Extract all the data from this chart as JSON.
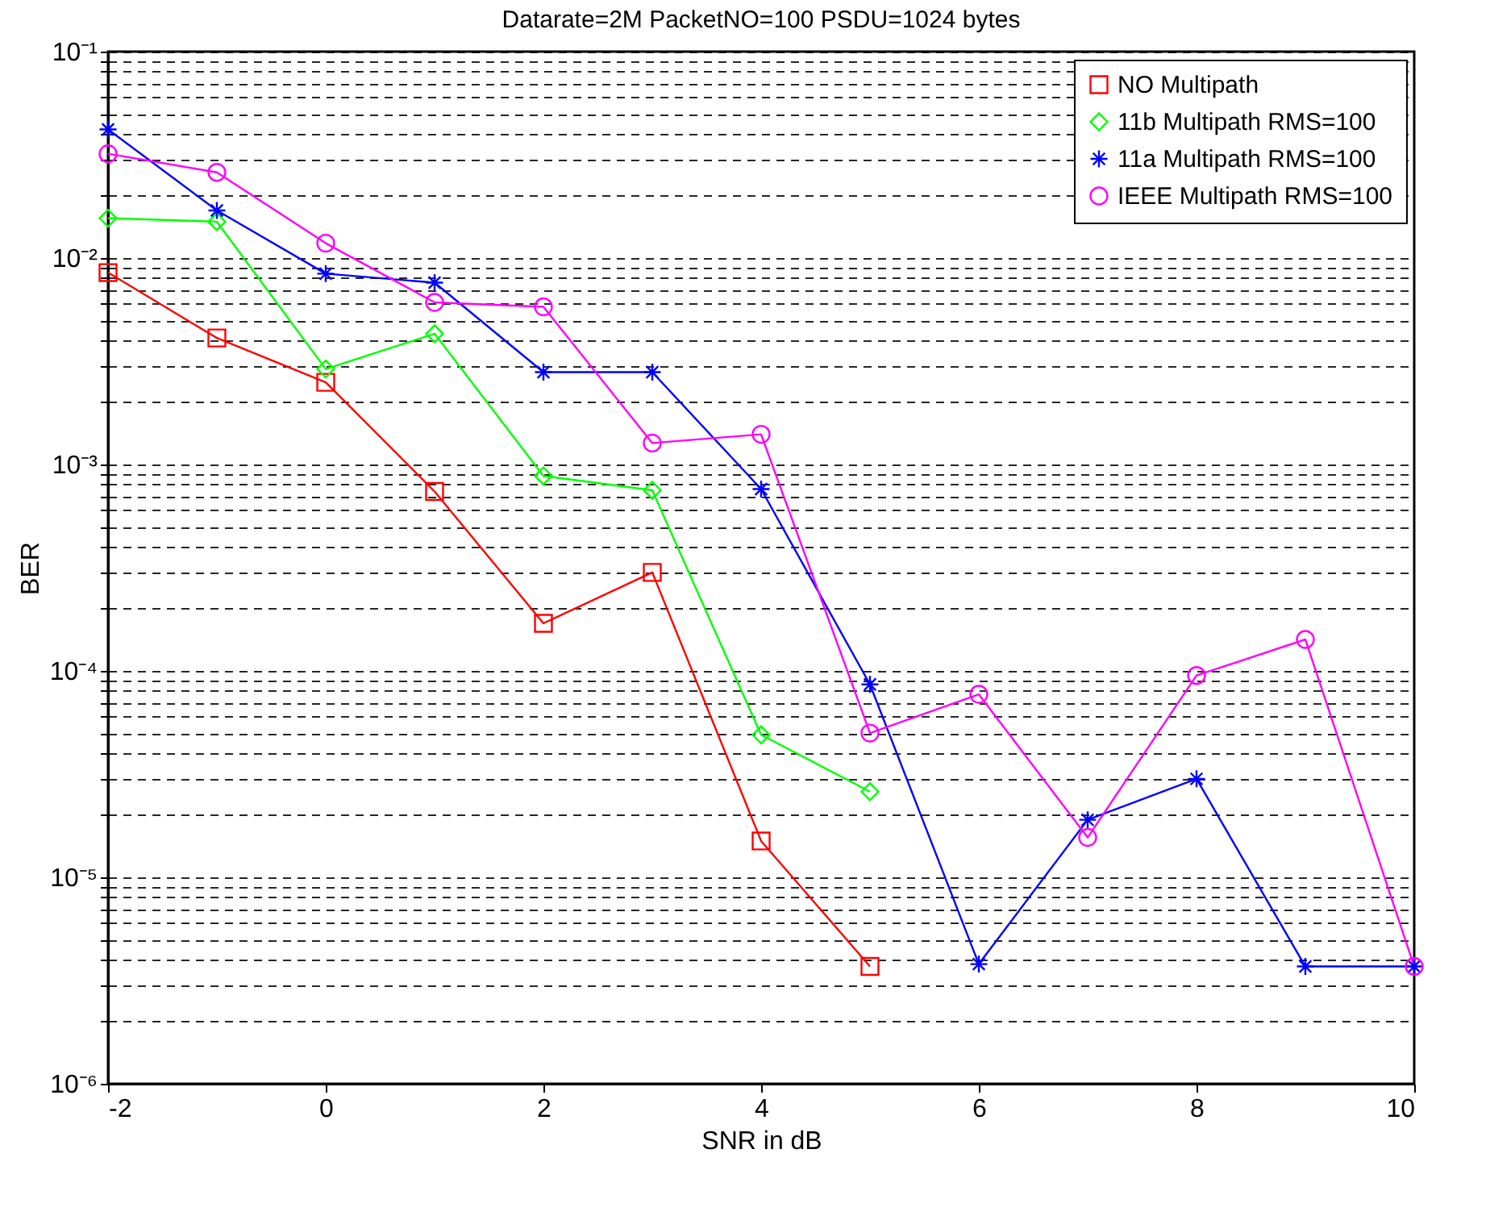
{
  "chart_data": {
    "type": "line",
    "title": "Datarate=2M PacketNO=100 PSDU=1024 bytes",
    "xlabel": "SNR in dB",
    "ylabel": "BER",
    "x": [
      -2,
      -1,
      0,
      1,
      2,
      3,
      4,
      5,
      6,
      7,
      8,
      9,
      10
    ],
    "series": [
      {
        "name": "NO Multipath",
        "color": "#ff0000",
        "marker": "square",
        "values": [
          0.0085,
          0.0041,
          0.0025,
          0.00074,
          0.00017,
          0.0003,
          1.5e-05,
          3.7e-06,
          null,
          null,
          null,
          null,
          null
        ]
      },
      {
        "name": "11b Multipath RMS=100",
        "color": "#00ff00",
        "marker": "diamond",
        "values": [
          0.0156,
          0.015,
          0.0029,
          0.0043,
          0.00088,
          0.00075,
          4.9e-05,
          2.6e-05,
          null,
          null,
          null,
          null,
          null
        ]
      },
      {
        "name": "11a Multipath RMS=100",
        "color": "#0000ff",
        "marker": "cross",
        "values": [
          0.042,
          0.017,
          0.0084,
          0.0076,
          0.0028,
          0.0028,
          0.00076,
          8.6e-05,
          3.8e-06,
          1.9e-05,
          3e-05,
          3.7e-06,
          3.7e-06
        ]
      },
      {
        "name": "IEEE Multipath RMS=100",
        "color": "#ff00ff",
        "marker": "circle",
        "values": [
          0.032,
          0.026,
          0.0118,
          0.0061,
          0.0058,
          0.00127,
          0.0014,
          5e-05,
          7.7e-05,
          1.56e-05,
          9.5e-05,
          0.000142,
          3.7e-06
        ]
      }
    ],
    "log": "y",
    "xlim": [
      -2,
      10
    ],
    "ylim": [
      1e-06,
      0.1
    ],
    "xticks": [
      -2,
      0,
      2,
      4,
      6,
      8,
      10
    ],
    "yticks": [
      {
        "value": 1e-06,
        "label": "10⁻⁶"
      },
      {
        "value": 2e-06,
        "label": null
      },
      {
        "value": 3e-06,
        "label": null
      },
      {
        "value": 4e-06,
        "label": null
      },
      {
        "value": 5e-06,
        "label": null
      },
      {
        "value": 6e-06,
        "label": null
      },
      {
        "value": 7e-06,
        "label": null
      },
      {
        "value": 8e-06,
        "label": null
      },
      {
        "value": 9e-06,
        "label": null
      },
      {
        "value": 1e-05,
        "label": "10⁻⁵"
      },
      {
        "value": 2e-05,
        "label": null
      },
      {
        "value": 3e-05,
        "label": null
      },
      {
        "value": 4e-05,
        "label": null
      },
      {
        "value": 5e-05,
        "label": null
      },
      {
        "value": 6e-05,
        "label": null
      },
      {
        "value": 7e-05,
        "label": null
      },
      {
        "value": 8e-05,
        "label": null
      },
      {
        "value": 9e-05,
        "label": null
      },
      {
        "value": 0.0001,
        "label": "10⁻⁴"
      },
      {
        "value": 0.0002,
        "label": null
      },
      {
        "value": 0.0003,
        "label": null
      },
      {
        "value": 0.0004,
        "label": null
      },
      {
        "value": 0.0005,
        "label": null
      },
      {
        "value": 0.0006,
        "label": null
      },
      {
        "value": 0.0007,
        "label": null
      },
      {
        "value": 0.0008,
        "label": null
      },
      {
        "value": 0.0009,
        "label": null
      },
      {
        "value": 0.001,
        "label": "10⁻³"
      },
      {
        "value": 0.002,
        "label": null
      },
      {
        "value": 0.003,
        "label": null
      },
      {
        "value": 0.004,
        "label": null
      },
      {
        "value": 0.005,
        "label": null
      },
      {
        "value": 0.006,
        "label": null
      },
      {
        "value": 0.007,
        "label": null
      },
      {
        "value": 0.008,
        "label": null
      },
      {
        "value": 0.009,
        "label": null
      },
      {
        "value": 0.01,
        "label": "10⁻²"
      },
      {
        "value": 0.02,
        "label": null
      },
      {
        "value": 0.03,
        "label": null
      },
      {
        "value": 0.04,
        "label": null
      },
      {
        "value": 0.05,
        "label": null
      },
      {
        "value": 0.06,
        "label": null
      },
      {
        "value": 0.07,
        "label": null
      },
      {
        "value": 0.08,
        "label": null
      },
      {
        "value": 0.09,
        "label": null
      },
      {
        "value": 0.1,
        "label": "10⁻¹"
      }
    ],
    "grid": "y",
    "legend": "top right",
    "line_style": "solid"
  }
}
